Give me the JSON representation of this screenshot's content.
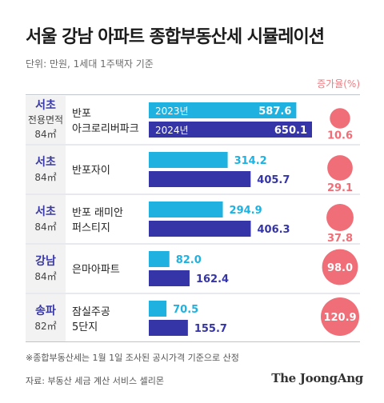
{
  "title": "서울 강남 아파트 종합부동산세 시뮬레이션",
  "unit_note": "단위: 만원, 1세대 1주택자 기준",
  "rate_header": "증가율(%)",
  "legend": {
    "y2023": "2023년",
    "y2024": "2024년"
  },
  "footnote": "※종합부동산세는 1월 1일 조사된 공시가격 기준으로 산정",
  "source": "자료: 부동산 세금 계산 서비스 셀리몬",
  "brand": "The JoongAng",
  "colors": {
    "y2023": "#1fb2e0",
    "y2024": "#3535a8",
    "rate": "#f06e77",
    "district": "#3838a8"
  },
  "chart_data": {
    "type": "bar",
    "series": [
      {
        "name": "2023년",
        "values": [
          587.6,
          314.2,
          294.9,
          82.0,
          70.5
        ]
      },
      {
        "name": "2024년",
        "values": [
          650.1,
          405.7,
          406.3,
          162.4,
          155.7
        ]
      }
    ],
    "rows": [
      {
        "district": "서초",
        "size_label": "전용면적",
        "size": "84㎡",
        "apt": [
          "반포",
          "아크로리버파크"
        ],
        "v2023": "587.6",
        "v2024": "650.1",
        "rate": "10.6"
      },
      {
        "district": "서초",
        "size_label": "",
        "size": "84㎡",
        "apt": [
          "반포자이"
        ],
        "v2023": "314.2",
        "v2024": "405.7",
        "rate": "29.1"
      },
      {
        "district": "서초",
        "size_label": "",
        "size": "84㎡",
        "apt": [
          "반포 래미안",
          "퍼스티지"
        ],
        "v2023": "294.9",
        "v2024": "406.3",
        "rate": "37.8"
      },
      {
        "district": "강남",
        "size_label": "",
        "size": "84㎡",
        "apt": [
          "은마아파트"
        ],
        "v2023": "82.0",
        "v2024": "162.4",
        "rate": "98.0"
      },
      {
        "district": "송파",
        "size_label": "",
        "size": "82㎡",
        "apt": [
          "잠실주공",
          "5단지"
        ],
        "v2023": "70.5",
        "v2024": "155.7",
        "rate": "120.9"
      }
    ],
    "rates": [
      10.6,
      29.1,
      37.8,
      98.0,
      120.9
    ]
  }
}
